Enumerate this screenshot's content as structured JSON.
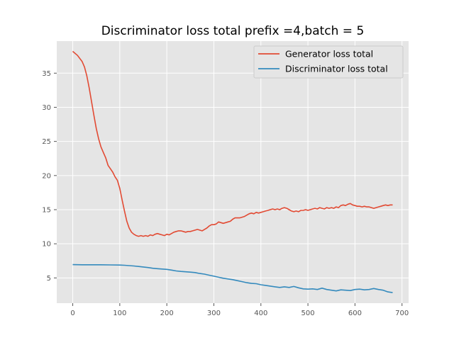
{
  "chart_data": {
    "type": "line",
    "title": "Discriminator loss total prefix =4,batch = 5",
    "xlabel": "",
    "ylabel": "",
    "xlim": [
      -34,
      714
    ],
    "ylim": [
      1.3,
      39.7
    ],
    "xticks": [
      0,
      100,
      200,
      300,
      400,
      500,
      600,
      700
    ],
    "yticks": [
      5,
      10,
      15,
      20,
      25,
      30,
      35
    ],
    "grid": true,
    "legend_position": "top-right",
    "series": [
      {
        "name": "Generator loss total",
        "color": "#E24A33",
        "points": [
          [
            0,
            38.2
          ],
          [
            10,
            37.6
          ],
          [
            20,
            36.7
          ],
          [
            25,
            35.9
          ],
          [
            30,
            34.6
          ],
          [
            35,
            32.8
          ],
          [
            40,
            30.8
          ],
          [
            45,
            28.8
          ],
          [
            50,
            26.9
          ],
          [
            55,
            25.4
          ],
          [
            60,
            24.2
          ],
          [
            65,
            23.4
          ],
          [
            70,
            22.6
          ],
          [
            75,
            21.5
          ],
          [
            80,
            21.0
          ],
          [
            85,
            20.5
          ],
          [
            90,
            19.8
          ],
          [
            95,
            19.3
          ],
          [
            100,
            18.1
          ],
          [
            105,
            16.4
          ],
          [
            110,
            14.8
          ],
          [
            115,
            13.3
          ],
          [
            120,
            12.3
          ],
          [
            125,
            11.7
          ],
          [
            130,
            11.4
          ],
          [
            135,
            11.2
          ],
          [
            140,
            11.1
          ],
          [
            145,
            11.2
          ],
          [
            150,
            11.1
          ],
          [
            155,
            11.2
          ],
          [
            160,
            11.1
          ],
          [
            165,
            11.3
          ],
          [
            170,
            11.2
          ],
          [
            175,
            11.4
          ],
          [
            180,
            11.5
          ],
          [
            185,
            11.4
          ],
          [
            190,
            11.3
          ],
          [
            195,
            11.2
          ],
          [
            200,
            11.4
          ],
          [
            205,
            11.3
          ],
          [
            210,
            11.5
          ],
          [
            215,
            11.7
          ],
          [
            220,
            11.8
          ],
          [
            225,
            11.9
          ],
          [
            230,
            11.9
          ],
          [
            235,
            11.8
          ],
          [
            240,
            11.7
          ],
          [
            245,
            11.8
          ],
          [
            250,
            11.8
          ],
          [
            255,
            11.9
          ],
          [
            260,
            12.0
          ],
          [
            265,
            12.1
          ],
          [
            270,
            12.0
          ],
          [
            275,
            11.9
          ],
          [
            280,
            12.1
          ],
          [
            285,
            12.3
          ],
          [
            290,
            12.6
          ],
          [
            295,
            12.8
          ],
          [
            300,
            12.8
          ],
          [
            305,
            12.9
          ],
          [
            310,
            13.2
          ],
          [
            315,
            13.1
          ],
          [
            320,
            13.0
          ],
          [
            325,
            13.1
          ],
          [
            330,
            13.2
          ],
          [
            335,
            13.3
          ],
          [
            340,
            13.6
          ],
          [
            345,
            13.8
          ],
          [
            350,
            13.8
          ],
          [
            355,
            13.8
          ],
          [
            360,
            13.9
          ],
          [
            365,
            14.0
          ],
          [
            370,
            14.2
          ],
          [
            375,
            14.4
          ],
          [
            380,
            14.5
          ],
          [
            385,
            14.4
          ],
          [
            390,
            14.6
          ],
          [
            395,
            14.5
          ],
          [
            400,
            14.6
          ],
          [
            405,
            14.7
          ],
          [
            410,
            14.8
          ],
          [
            415,
            14.9
          ],
          [
            420,
            15.0
          ],
          [
            425,
            15.1
          ],
          [
            430,
            15.0
          ],
          [
            435,
            15.1
          ],
          [
            440,
            15.0
          ],
          [
            445,
            15.2
          ],
          [
            450,
            15.3
          ],
          [
            455,
            15.2
          ],
          [
            460,
            15.0
          ],
          [
            465,
            14.8
          ],
          [
            470,
            14.7
          ],
          [
            475,
            14.8
          ],
          [
            480,
            14.7
          ],
          [
            485,
            14.9
          ],
          [
            490,
            14.9
          ],
          [
            495,
            15.0
          ],
          [
            500,
            14.9
          ],
          [
            505,
            15.0
          ],
          [
            510,
            15.1
          ],
          [
            515,
            15.2
          ],
          [
            520,
            15.1
          ],
          [
            525,
            15.3
          ],
          [
            530,
            15.2
          ],
          [
            535,
            15.1
          ],
          [
            540,
            15.3
          ],
          [
            545,
            15.2
          ],
          [
            550,
            15.3
          ],
          [
            555,
            15.2
          ],
          [
            560,
            15.4
          ],
          [
            565,
            15.3
          ],
          [
            570,
            15.6
          ],
          [
            575,
            15.7
          ],
          [
            580,
            15.6
          ],
          [
            585,
            15.8
          ],
          [
            590,
            15.9
          ],
          [
            595,
            15.7
          ],
          [
            600,
            15.6
          ],
          [
            605,
            15.5
          ],
          [
            610,
            15.5
          ],
          [
            615,
            15.4
          ],
          [
            620,
            15.5
          ],
          [
            625,
            15.4
          ],
          [
            630,
            15.4
          ],
          [
            635,
            15.3
          ],
          [
            640,
            15.2
          ],
          [
            645,
            15.3
          ],
          [
            650,
            15.4
          ],
          [
            655,
            15.5
          ],
          [
            660,
            15.6
          ],
          [
            665,
            15.7
          ],
          [
            670,
            15.6
          ],
          [
            675,
            15.7
          ],
          [
            680,
            15.7
          ]
        ]
      },
      {
        "name": "Discriminator loss total",
        "color": "#348ABD",
        "points": [
          [
            0,
            6.95
          ],
          [
            20,
            6.93
          ],
          [
            40,
            6.92
          ],
          [
            60,
            6.92
          ],
          [
            80,
            6.9
          ],
          [
            100,
            6.88
          ],
          [
            110,
            6.85
          ],
          [
            120,
            6.8
          ],
          [
            130,
            6.75
          ],
          [
            140,
            6.68
          ],
          [
            150,
            6.6
          ],
          [
            160,
            6.52
          ],
          [
            170,
            6.42
          ],
          [
            180,
            6.35
          ],
          [
            190,
            6.3
          ],
          [
            200,
            6.25
          ],
          [
            210,
            6.15
          ],
          [
            220,
            6.02
          ],
          [
            230,
            5.95
          ],
          [
            240,
            5.9
          ],
          [
            250,
            5.85
          ],
          [
            260,
            5.78
          ],
          [
            270,
            5.65
          ],
          [
            280,
            5.55
          ],
          [
            290,
            5.4
          ],
          [
            300,
            5.25
          ],
          [
            310,
            5.1
          ],
          [
            320,
            4.95
          ],
          [
            330,
            4.85
          ],
          [
            340,
            4.75
          ],
          [
            350,
            4.6
          ],
          [
            360,
            4.45
          ],
          [
            370,
            4.3
          ],
          [
            380,
            4.2
          ],
          [
            390,
            4.15
          ],
          [
            400,
            4.0
          ],
          [
            410,
            3.9
          ],
          [
            420,
            3.8
          ],
          [
            430,
            3.7
          ],
          [
            440,
            3.6
          ],
          [
            450,
            3.7
          ],
          [
            460,
            3.6
          ],
          [
            470,
            3.75
          ],
          [
            480,
            3.55
          ],
          [
            490,
            3.4
          ],
          [
            500,
            3.35
          ],
          [
            510,
            3.4
          ],
          [
            520,
            3.3
          ],
          [
            530,
            3.5
          ],
          [
            540,
            3.3
          ],
          [
            550,
            3.2
          ],
          [
            560,
            3.1
          ],
          [
            570,
            3.25
          ],
          [
            580,
            3.2
          ],
          [
            590,
            3.15
          ],
          [
            600,
            3.3
          ],
          [
            610,
            3.35
          ],
          [
            620,
            3.25
          ],
          [
            630,
            3.3
          ],
          [
            640,
            3.45
          ],
          [
            650,
            3.3
          ],
          [
            660,
            3.2
          ],
          [
            670,
            2.95
          ],
          [
            680,
            2.85
          ]
        ]
      }
    ]
  }
}
